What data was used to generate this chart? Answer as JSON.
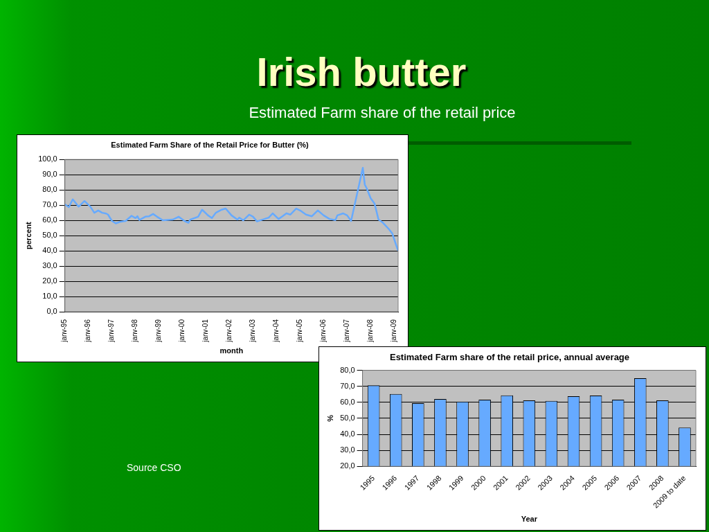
{
  "chart_data": [
    {
      "type": "other",
      "title": "Irish butter",
      "subtitle": "Estimated Farm share of the retail price",
      "annotations": [
        "Source CSO"
      ]
    },
    {
      "type": "line",
      "title": "Estimated Farm Share of the Retail Price for Butter (%)",
      "xlabel": "month",
      "ylabel": "percent",
      "color": "#66aaff",
      "marker": "none",
      "grid": "y",
      "legend": false,
      "x": [
        "1995-01",
        "1995-03",
        "1995-05",
        "1995-08",
        "1995-11",
        "1996-02",
        "1996-04",
        "1996-06",
        "1996-08",
        "1996-10",
        "1996-11",
        "1997-01",
        "1997-03",
        "1997-05",
        "1997-08",
        "1997-11",
        "1998-01",
        "1998-02",
        "1998-03",
        "1998-06",
        "1998-08",
        "1998-10",
        "1998-12",
        "1999-03",
        "1999-08",
        "1999-11",
        "2000-02",
        "2000-04",
        "2000-05",
        "2000-09",
        "2000-11",
        "2001-02",
        "2001-04",
        "2001-06",
        "2001-09",
        "2001-11",
        "2002-02",
        "2002-05",
        "2002-06",
        "2002-08",
        "2002-11",
        "2003-01",
        "2003-03",
        "2003-09",
        "2003-11",
        "2004-02",
        "2004-04",
        "2004-06",
        "2004-08",
        "2004-11",
        "2005-01",
        "2005-04",
        "2005-07",
        "2005-10",
        "2006-01",
        "2006-04",
        "2006-07",
        "2006-08",
        "2006-11",
        "2007-01",
        "2007-03",
        "2007-06",
        "2007-09",
        "2007-10",
        "2007-11",
        "2008-01",
        "2008-03",
        "2008-05",
        "2008-07",
        "2008-10",
        "2008-12",
        "2009-03"
      ],
      "values": [
        70.5,
        68.7,
        73.8,
        69,
        72.7,
        69,
        65,
        66.5,
        65,
        64.5,
        63.8,
        59.6,
        58,
        59,
        59.6,
        63,
        61.5,
        62.7,
        60.2,
        62.4,
        62.7,
        64.2,
        62.4,
        60,
        60.5,
        62.4,
        59.6,
        58.4,
        60.5,
        62.4,
        67,
        63.3,
        61.5,
        65,
        67,
        67.8,
        63.3,
        60.5,
        61.8,
        60,
        63.8,
        62.4,
        59.3,
        61.8,
        64.6,
        60.9,
        62.7,
        64.6,
        63.8,
        67.7,
        66.5,
        63.8,
        62.7,
        66.5,
        63.3,
        60.9,
        60.2,
        63.3,
        64.6,
        63.3,
        59.6,
        77,
        94.5,
        83.5,
        81,
        74.5,
        71,
        60.5,
        58.7,
        54.7,
        51.4,
        40
      ],
      "xlim": [
        "1995-01",
        "2009-03"
      ],
      "xticks": [
        {
          "value": "1995-01",
          "label": "janv-95"
        },
        {
          "value": "1996-01",
          "label": "janv-96"
        },
        {
          "value": "1997-01",
          "label": "janv-97"
        },
        {
          "value": "1998-01",
          "label": "janv-98"
        },
        {
          "value": "1999-01",
          "label": "janv-99"
        },
        {
          "value": "2000-01",
          "label": "janv-00"
        },
        {
          "value": "2001-01",
          "label": "janv-01"
        },
        {
          "value": "2002-01",
          "label": "janv-02"
        },
        {
          "value": "2003-01",
          "label": "janv-03"
        },
        {
          "value": "2004-01",
          "label": "janv-04"
        },
        {
          "value": "2005-01",
          "label": "janv-05"
        },
        {
          "value": "2006-01",
          "label": "janv-06"
        },
        {
          "value": "2007-01",
          "label": "janv-07"
        },
        {
          "value": "2008-01",
          "label": "janv-08"
        },
        {
          "value": "2009-01",
          "label": "janv-09"
        }
      ],
      "ylim": [
        0,
        100
      ],
      "yticks": [
        {
          "value": 0,
          "label": "0,0"
        },
        {
          "value": 10,
          "label": "10,0"
        },
        {
          "value": 20,
          "label": "20,0"
        },
        {
          "value": 30,
          "label": "30,0"
        },
        {
          "value": 40,
          "label": "40,0"
        },
        {
          "value": 50,
          "label": "50,0"
        },
        {
          "value": 60,
          "label": "60,0"
        },
        {
          "value": 70,
          "label": "70,0"
        },
        {
          "value": 80,
          "label": "80,0"
        },
        {
          "value": 90,
          "label": "90,0"
        },
        {
          "value": 100,
          "label": "100,0"
        }
      ]
    },
    {
      "type": "bar",
      "title": "Estimated Farm share of the retail price, annual average",
      "xlabel": "Year",
      "ylabel": "%",
      "color": "#66aaff",
      "grid": "y",
      "legend": false,
      "categories": [
        "1995",
        "1996",
        "1997",
        "1998",
        "1999",
        "2000",
        "2001",
        "2002",
        "2003",
        "2004",
        "2005",
        "2006",
        "2007",
        "2008",
        "2009 to date"
      ],
      "values": [
        70.6,
        65.2,
        59.5,
        62.1,
        60.5,
        61.6,
        64.3,
        61.2,
        60.9,
        63.8,
        64.2,
        61.6,
        75.1,
        61.2,
        44.2
      ],
      "ylim": [
        20,
        80
      ],
      "yticks": [
        {
          "value": 20,
          "label": "20,0"
        },
        {
          "value": 30,
          "label": "30,0"
        },
        {
          "value": 40,
          "label": "40,0"
        },
        {
          "value": 50,
          "label": "50,0"
        },
        {
          "value": 60,
          "label": "60,0"
        },
        {
          "value": 70,
          "label": "70,0"
        },
        {
          "value": 80,
          "label": "80,0"
        }
      ]
    }
  ]
}
